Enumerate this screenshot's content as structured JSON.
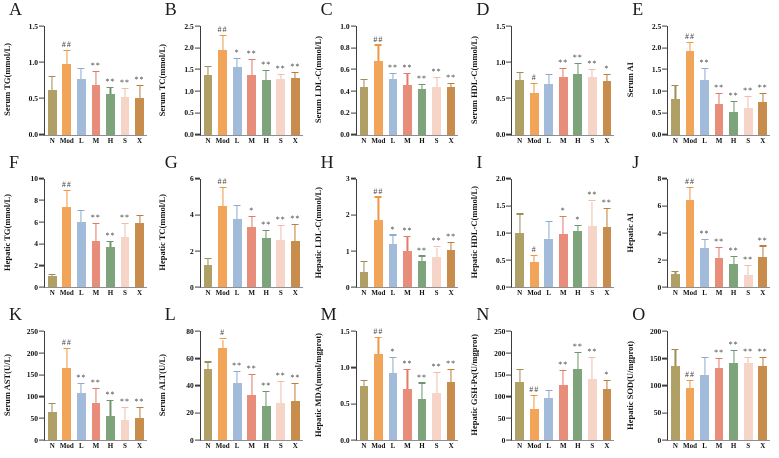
{
  "figure": {
    "background": "#ffffff",
    "rows": 3,
    "cols": 5
  },
  "categories": [
    "N",
    "Mod",
    "L",
    "M",
    "H",
    "S",
    "X"
  ],
  "bar_colors": [
    "#b1a066",
    "#f2a458",
    "#a3bbdb",
    "#e98d7b",
    "#7ea47c",
    "#f7d4c8",
    "#c88d4d"
  ],
  "error_colors": [
    "#9e8d55",
    "#ee9740",
    "#8cabd2",
    "#e37a67",
    "#6e966c",
    "#f2bcab",
    "#ba7e3d"
  ],
  "axis_colors": {
    "y_axis": "#3d3d3d",
    "x_axis": "#8e8e8e",
    "text": "#111111",
    "annotation": "#3a3a3a"
  },
  "chart_data": [
    {
      "type": "bar",
      "panel": "A",
      "ylabel": "Serum TG(mmol/L)",
      "ylim": [
        0,
        1.5
      ],
      "yticks": [
        "0.0",
        "0.5",
        "1.0",
        "1.5"
      ],
      "categories": [
        "N",
        "Mod",
        "L",
        "M",
        "H",
        "S",
        "X"
      ],
      "values": [
        0.62,
        0.97,
        0.77,
        0.69,
        0.56,
        0.52,
        0.5
      ],
      "errors": [
        0.17,
        0.18,
        0.13,
        0.17,
        0.08,
        0.11,
        0.17
      ],
      "annotations": [
        "",
        "##",
        "",
        "**",
        "**",
        "**",
        "**"
      ]
    },
    {
      "type": "bar",
      "panel": "B",
      "ylabel": "Serum TC(mmol/L)",
      "ylim": [
        0,
        2.5
      ],
      "yticks": [
        "0.0",
        "0.5",
        "1.0",
        "1.5",
        "2.0",
        "2.5"
      ],
      "categories": [
        "N",
        "Mod",
        "L",
        "M",
        "H",
        "S",
        "X"
      ],
      "values": [
        1.38,
        1.95,
        1.55,
        1.38,
        1.25,
        1.27,
        1.3
      ],
      "errors": [
        0.18,
        0.32,
        0.18,
        0.33,
        0.22,
        0.1,
        0.12
      ],
      "annotations": [
        "",
        "##",
        "*",
        "**",
        "**",
        "**",
        "**"
      ]
    },
    {
      "type": "bar",
      "panel": "C",
      "ylabel": "Serum LDL-C(mmol/L)",
      "ylim": [
        0,
        1.0
      ],
      "yticks": [
        "0.0",
        "0.2",
        "0.4",
        "0.6",
        "0.8",
        "1.0"
      ],
      "categories": [
        "N",
        "Mod",
        "L",
        "M",
        "H",
        "S",
        "X"
      ],
      "values": [
        0.44,
        0.68,
        0.51,
        0.46,
        0.42,
        0.44,
        0.44
      ],
      "errors": [
        0.06,
        0.14,
        0.05,
        0.1,
        0.04,
        0.08,
        0.03
      ],
      "annotations": [
        "",
        "##",
        "**",
        "**",
        "**",
        "**",
        "**"
      ]
    },
    {
      "type": "bar",
      "panel": "D",
      "ylabel": "Serum HDL-C(mmol/L)",
      "ylim": [
        0,
        1.5
      ],
      "yticks": [
        "0.0",
        "0.5",
        "1.0",
        "1.5"
      ],
      "categories": [
        "N",
        "Mod",
        "L",
        "M",
        "H",
        "S",
        "X"
      ],
      "values": [
        0.76,
        0.58,
        0.7,
        0.8,
        0.84,
        0.79,
        0.74
      ],
      "errors": [
        0.09,
        0.12,
        0.12,
        0.11,
        0.13,
        0.1,
        0.08
      ],
      "annotations": [
        "",
        "#",
        "",
        "**",
        "**",
        "**",
        "*"
      ]
    },
    {
      "type": "bar",
      "panel": "E",
      "ylabel": "Serum AI",
      "ylim": [
        0,
        2.5
      ],
      "yticks": [
        "0.0",
        "0.5",
        "1.0",
        "1.5",
        "2.0",
        "2.5"
      ],
      "categories": [
        "N",
        "Mod",
        "L",
        "M",
        "H",
        "S",
        "X"
      ],
      "values": [
        0.83,
        1.93,
        1.26,
        0.7,
        0.52,
        0.61,
        0.76
      ],
      "errors": [
        0.29,
        0.18,
        0.25,
        0.24,
        0.23,
        0.26,
        0.17
      ],
      "annotations": [
        "",
        "##",
        "**",
        "**",
        "**",
        "**",
        "**"
      ]
    },
    {
      "type": "bar",
      "panel": "F",
      "ylabel": "Hepatic TG(mmol/L)",
      "ylim": [
        0,
        10
      ],
      "yticks": [
        "0",
        "2",
        "4",
        "6",
        "8",
        "10"
      ],
      "categories": [
        "N",
        "Mod",
        "L",
        "M",
        "H",
        "S",
        "X"
      ],
      "values": [
        1.0,
        7.4,
        6.0,
        4.3,
        3.7,
        4.6,
        5.9
      ],
      "errors": [
        0.15,
        1.45,
        1.0,
        1.5,
        0.5,
        1.2,
        0.7
      ],
      "annotations": [
        "",
        "##",
        "",
        "**",
        "**",
        "**",
        ""
      ]
    },
    {
      "type": "bar",
      "panel": "G",
      "ylabel": "Hepatic TC(mmol/L)",
      "ylim": [
        0,
        6
      ],
      "yticks": [
        "0",
        "2",
        "4",
        "6"
      ],
      "categories": [
        "N",
        "Mod",
        "L",
        "M",
        "H",
        "S",
        "X"
      ],
      "values": [
        1.25,
        4.5,
        3.8,
        3.35,
        2.75,
        2.6,
        2.55
      ],
      "errors": [
        0.3,
        1.0,
        0.7,
        0.55,
        0.35,
        0.8,
        0.9
      ],
      "annotations": [
        "",
        "##",
        "",
        "*",
        "**",
        "**",
        "**"
      ]
    },
    {
      "type": "bar",
      "panel": "H",
      "ylabel": "Hepatic LDL-C(mmol/L)",
      "ylim": [
        0,
        3
      ],
      "yticks": [
        "0",
        "1",
        "2",
        "3"
      ],
      "categories": [
        "N",
        "Mod",
        "L",
        "M",
        "H",
        "S",
        "X"
      ],
      "values": [
        0.42,
        1.85,
        1.2,
        1.0,
        0.72,
        0.83,
        1.02
      ],
      "errors": [
        0.28,
        0.63,
        0.23,
        0.38,
        0.13,
        0.27,
        0.2
      ],
      "annotations": [
        "",
        "##",
        "*",
        "**",
        "**",
        "**",
        "**"
      ]
    },
    {
      "type": "bar",
      "panel": "I",
      "ylabel": "Hepatic HDL-C(mmol/L)",
      "ylim": [
        0,
        2.0
      ],
      "yticks": [
        "0.0",
        "0.5",
        "1.0",
        "1.5",
        "2.0"
      ],
      "categories": [
        "N",
        "Mod",
        "L",
        "M",
        "H",
        "S",
        "X"
      ],
      "values": [
        1.0,
        0.46,
        0.89,
        0.99,
        1.03,
        1.13,
        1.11
      ],
      "errors": [
        0.34,
        0.12,
        0.31,
        0.31,
        0.1,
        0.45,
        0.33
      ],
      "annotations": [
        "",
        "#",
        "",
        "*",
        "*",
        "**",
        "**"
      ]
    },
    {
      "type": "bar",
      "panel": "J",
      "ylabel": "Hepatic AI",
      "ylim": [
        0,
        8
      ],
      "yticks": [
        "0",
        "2",
        "4",
        "6",
        "8"
      ],
      "categories": [
        "N",
        "Mod",
        "L",
        "M",
        "H",
        "S",
        "X"
      ],
      "values": [
        1.0,
        6.4,
        2.9,
        2.15,
        1.7,
        0.9,
        2.2
      ],
      "errors": [
        0.15,
        0.9,
        0.6,
        0.75,
        0.5,
        0.7,
        0.8
      ],
      "annotations": [
        "",
        "##",
        "**",
        "**",
        "**",
        "**",
        "**"
      ]
    },
    {
      "type": "bar",
      "panel": "K",
      "ylabel": "Serum AST(U/L)",
      "ylim": [
        0,
        250
      ],
      "yticks": [
        "0",
        "50",
        "100",
        "150",
        "200",
        "250"
      ],
      "categories": [
        "N",
        "Mod",
        "L",
        "M",
        "H",
        "S",
        "X"
      ],
      "values": [
        65,
        165,
        108,
        85,
        55,
        46,
        50
      ],
      "errors": [
        17,
        45,
        20,
        32,
        35,
        27,
        23
      ],
      "annotations": [
        "",
        "##",
        "**",
        "**",
        "**",
        "**",
        "**"
      ]
    },
    {
      "type": "bar",
      "panel": "L",
      "ylabel": "Serum ALT(U/L)",
      "ylim": [
        0,
        80
      ],
      "yticks": [
        "0",
        "20",
        "40",
        "60",
        "80"
      ],
      "categories": [
        "N",
        "Mod",
        "L",
        "M",
        "H",
        "S",
        "X"
      ],
      "values": [
        52,
        68,
        42,
        33,
        25,
        27,
        29
      ],
      "errors": [
        5,
        6,
        8,
        15,
        10,
        16,
        12
      ],
      "annotations": [
        "",
        "#",
        "**",
        "**",
        "**",
        "**",
        "**"
      ]
    },
    {
      "type": "bar",
      "panel": "M",
      "ylabel": "Hepatic MDA(nmol/mgprot)",
      "ylim": [
        0,
        1.5
      ],
      "yticks": [
        "0.0",
        "0.5",
        "1.0",
        "1.5"
      ],
      "categories": [
        "N",
        "Mod",
        "L",
        "M",
        "H",
        "S",
        "X"
      ],
      "values": [
        0.74,
        1.19,
        0.92,
        0.71,
        0.57,
        0.65,
        0.8
      ],
      "errors": [
        0.07,
        0.22,
        0.21,
        0.26,
        0.21,
        0.28,
        0.17
      ],
      "annotations": [
        "",
        "##",
        "*",
        "**",
        "**",
        "**",
        "**"
      ]
    },
    {
      "type": "bar",
      "panel": "N",
      "ylabel": "Hepatic GSH-Px(U/mgprot)",
      "ylim": [
        0,
        250
      ],
      "yticks": [
        "0",
        "50",
        "100",
        "150",
        "200",
        "250"
      ],
      "categories": [
        "N",
        "Mod",
        "L",
        "M",
        "H",
        "S",
        "X"
      ],
      "values": [
        133,
        72,
        96,
        126,
        163,
        141,
        118
      ],
      "errors": [
        28,
        30,
        16,
        32,
        38,
        47,
        18
      ],
      "annotations": [
        "",
        "##",
        "",
        "**",
        "**",
        "**",
        "*"
      ]
    },
    {
      "type": "bar",
      "panel": "O",
      "ylabel": "Hepatic SOD(U/mgprot)",
      "ylim": [
        0,
        200
      ],
      "yticks": [
        "0",
        "50",
        "100",
        "150",
        "200"
      ],
      "categories": [
        "N",
        "Mod",
        "L",
        "M",
        "H",
        "S",
        "X"
      ],
      "values": [
        136,
        96,
        120,
        132,
        141,
        141,
        136
      ],
      "errors": [
        30,
        13,
        31,
        17,
        23,
        10,
        15
      ],
      "annotations": [
        "",
        "##",
        "",
        "**",
        "**",
        "**",
        "**"
      ]
    }
  ]
}
